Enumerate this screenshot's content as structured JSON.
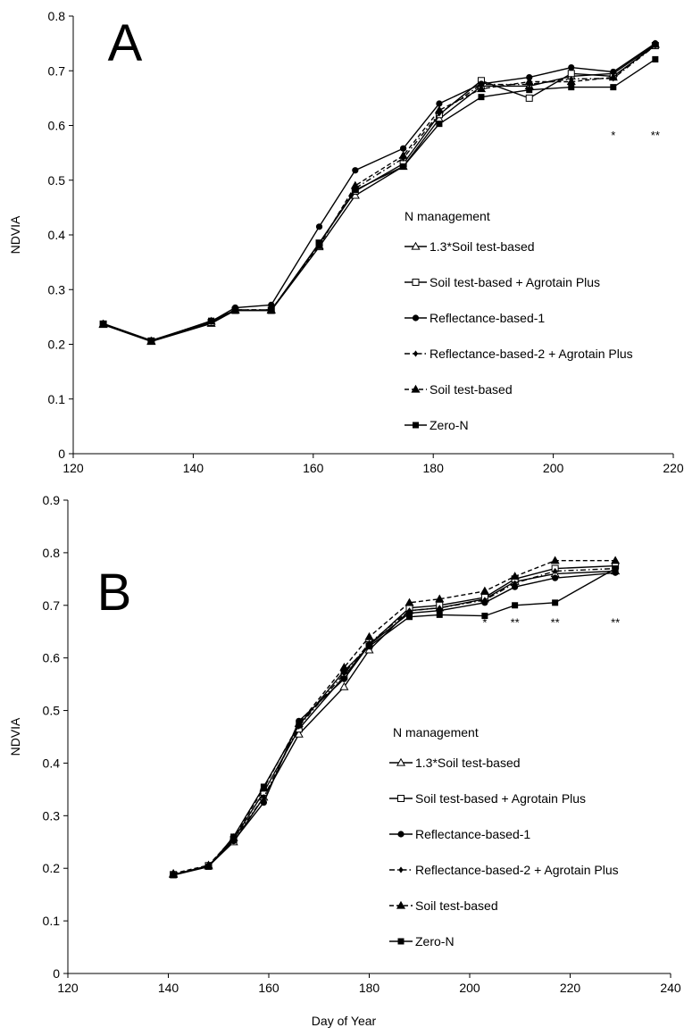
{
  "xlabel": "Day of Year",
  "legend_title": "N management",
  "series_styles": [
    {
      "name": "1.3*Soil test-based",
      "marker": "triangle-open",
      "dash": "solid"
    },
    {
      "name": "Soil test-based + Agrotain Plus",
      "marker": "square-open",
      "dash": "solid"
    },
    {
      "name": "Reflectance-based-1",
      "marker": "circle-filled",
      "dash": "solid"
    },
    {
      "name": "Reflectance-based-2 + Agrotain Plus",
      "marker": "diamond-filled",
      "dash": "dashdot"
    },
    {
      "name": "Soil test-based",
      "marker": "triangle-filled",
      "dash": "dashed"
    },
    {
      "name": "Zero-N",
      "marker": "square-filled",
      "dash": "solid"
    }
  ],
  "line_color": "#000000",
  "chart_data": [
    {
      "type": "line",
      "panel_label": "A",
      "ylabel": "NDVIA",
      "xlim": [
        120,
        220
      ],
      "ylim": [
        0,
        0.8
      ],
      "xticks": [
        120,
        140,
        160,
        180,
        200,
        220
      ],
      "yticks": [
        0,
        0.1,
        0.2,
        0.3,
        0.4,
        0.5,
        0.6,
        0.7,
        0.8
      ],
      "x": [
        125,
        133,
        143,
        147,
        153,
        161,
        167,
        175,
        181,
        188,
        196,
        203,
        210,
        217
      ],
      "series": [
        {
          "name": "1.3*Soil test-based",
          "values": [
            0.236,
            0.205,
            0.238,
            0.262,
            0.262,
            0.378,
            0.472,
            0.525,
            0.612,
            0.672,
            0.672,
            0.69,
            0.695,
            0.748
          ]
        },
        {
          "name": "Soil test-based + Agrotain Plus",
          "values": [
            0.237,
            0.206,
            0.24,
            0.262,
            0.262,
            0.385,
            0.48,
            0.53,
            0.62,
            0.682,
            0.65,
            0.695,
            0.69,
            0.746
          ]
        },
        {
          "name": "Reflectance-based-1",
          "values": [
            0.238,
            0.207,
            0.242,
            0.267,
            0.272,
            0.415,
            0.518,
            0.558,
            0.64,
            0.676,
            0.688,
            0.706,
            0.698,
            0.75
          ]
        },
        {
          "name": "Reflectance-based-2 + Agrotain Plus",
          "values": [
            0.237,
            0.206,
            0.241,
            0.263,
            0.263,
            0.383,
            0.485,
            0.54,
            0.622,
            0.675,
            0.675,
            0.685,
            0.686,
            0.746
          ]
        },
        {
          "name": "Soil test-based",
          "values": [
            0.237,
            0.206,
            0.242,
            0.263,
            0.263,
            0.38,
            0.49,
            0.545,
            0.628,
            0.667,
            0.68,
            0.68,
            0.688,
            0.748
          ]
        },
        {
          "name": "Zero-N",
          "values": [
            0.237,
            0.206,
            0.243,
            0.262,
            0.262,
            0.385,
            0.482,
            0.525,
            0.603,
            0.652,
            0.665,
            0.67,
            0.67,
            0.721
          ]
        }
      ],
      "annotations": [
        {
          "x": 210,
          "y": 0.575,
          "text": "*"
        },
        {
          "x": 217,
          "y": 0.575,
          "text": "**"
        }
      ],
      "legend": {
        "placement": "center-right"
      }
    },
    {
      "type": "line",
      "panel_label": "B",
      "ylabel": "NDVIA",
      "xlim": [
        120,
        240
      ],
      "ylim": [
        0,
        0.9
      ],
      "xticks": [
        120,
        140,
        160,
        180,
        200,
        220,
        240
      ],
      "yticks": [
        0,
        0.1,
        0.2,
        0.3,
        0.4,
        0.5,
        0.6,
        0.7,
        0.8,
        0.9
      ],
      "x": [
        141,
        148,
        153,
        159,
        166,
        175,
        180,
        188,
        194,
        203,
        209,
        217,
        229
      ],
      "series": [
        {
          "name": "1.3*Soil test-based",
          "values": [
            0.188,
            0.204,
            0.25,
            0.335,
            0.455,
            0.545,
            0.615,
            0.69,
            0.695,
            0.712,
            0.745,
            0.76,
            0.765
          ]
        },
        {
          "name": "Soil test-based + Agrotain Plus",
          "values": [
            0.188,
            0.205,
            0.255,
            0.345,
            0.465,
            0.565,
            0.625,
            0.695,
            0.7,
            0.715,
            0.75,
            0.77,
            0.775
          ]
        },
        {
          "name": "Reflectance-based-1",
          "values": [
            0.188,
            0.204,
            0.252,
            0.325,
            0.48,
            0.56,
            0.625,
            0.685,
            0.69,
            0.705,
            0.735,
            0.752,
            0.762
          ]
        },
        {
          "name": "Reflectance-based-2 + Agrotain Plus",
          "values": [
            0.188,
            0.204,
            0.255,
            0.335,
            0.47,
            0.57,
            0.628,
            0.69,
            0.695,
            0.71,
            0.742,
            0.765,
            0.77
          ]
        },
        {
          "name": "Soil test-based",
          "values": [
            0.19,
            0.206,
            0.258,
            0.352,
            0.475,
            0.582,
            0.64,
            0.705,
            0.712,
            0.727,
            0.755,
            0.785,
            0.785
          ]
        },
        {
          "name": "Zero-N",
          "values": [
            0.187,
            0.203,
            0.26,
            0.355,
            0.472,
            0.575,
            0.622,
            0.678,
            0.682,
            0.68,
            0.7,
            0.705,
            0.77
          ]
        }
      ],
      "annotations": [
        {
          "x": 203,
          "y": 0.66,
          "text": "*"
        },
        {
          "x": 209,
          "y": 0.66,
          "text": "**"
        },
        {
          "x": 217,
          "y": 0.66,
          "text": "**"
        },
        {
          "x": 229,
          "y": 0.66,
          "text": "**"
        }
      ],
      "legend": {
        "placement": "center-right"
      }
    }
  ]
}
